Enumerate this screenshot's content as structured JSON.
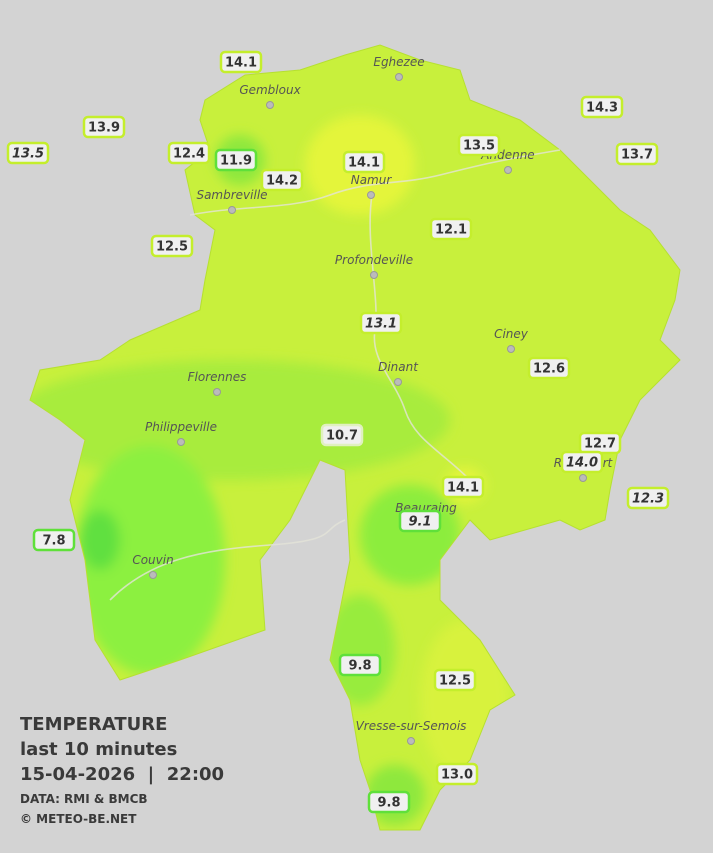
{
  "stations": [
    "14.1",
    "13.9",
    "13.5",
    "12.4",
    "11.9",
    "14.2",
    "14.1",
    "13.5",
    "14.3",
    "13.7",
    "12.1",
    "12.5",
    "13.1",
    "12.6",
    "10.7",
    "12.7",
    "14.0",
    "12.3",
    "14.1",
    "9.1",
    "7.8",
    "9.8",
    "12.5",
    "13.0",
    "9.8"
  ],
  "cities": [
    "Eghezee",
    "Gembloux",
    "Andenne",
    "Namur",
    "Sambreville",
    "Profondeville",
    "Ciney",
    "Dinant",
    "Florennes",
    "Philippeville",
    "Rochefort",
    "Beauraing",
    "Couvin",
    "Vresse-sur-Semois"
  ],
  "legend": {
    "title": "TEMPERATURE",
    "subtitle": "last 10 minutes",
    "datetime": "15-04-2026  |  22:00",
    "data": "DATA: RMI & BMCB",
    "credit": "© METEO-BE.NET"
  }
}
